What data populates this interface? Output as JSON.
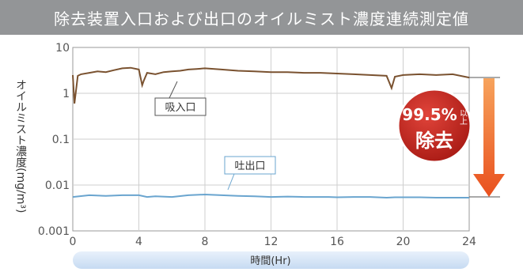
{
  "title": "除去装置入口および出口のオイルミスト濃度連続測定値",
  "chart_data": {
    "type": "line",
    "title": "除去装置入口および出口のオイルミスト濃度連続測定値",
    "xlabel": "時間(Hr)",
    "ylabel": "オイルミスト濃度(mg/m³)",
    "xlim": [
      0,
      24
    ],
    "ylim": [
      0.001,
      10
    ],
    "yscale": "log",
    "grid": true,
    "x_ticks": [
      "0",
      "4",
      "8",
      "12",
      "16",
      "20",
      "24"
    ],
    "y_ticks": [
      "10",
      "1",
      "0.1",
      "0.01",
      "0.001"
    ],
    "series": [
      {
        "name": "吸入口",
        "color": "#7a5230",
        "x": [
          0,
          0.1,
          0.2,
          0.3,
          0.5,
          1,
          1.5,
          2,
          2.5,
          3,
          3.5,
          4,
          4.2,
          4.3,
          4.5,
          5,
          5.5,
          6,
          6.5,
          7,
          7.5,
          8,
          9,
          10,
          11,
          12,
          13,
          14,
          15,
          16,
          17,
          18,
          19,
          19.3,
          19.5,
          20,
          21,
          22,
          23,
          24
        ],
        "y": [
          2.5,
          0.6,
          1.2,
          2.4,
          2.6,
          2.8,
          3.0,
          2.9,
          3.2,
          3.5,
          3.6,
          3.3,
          1.5,
          1.9,
          2.8,
          2.6,
          2.9,
          3.0,
          3.1,
          3.3,
          3.4,
          3.5,
          3.3,
          3.1,
          3.0,
          2.9,
          2.9,
          2.8,
          2.8,
          2.7,
          2.6,
          2.5,
          2.4,
          1.3,
          2.3,
          2.5,
          2.6,
          2.5,
          2.6,
          2.2
        ]
      },
      {
        "name": "吐出口",
        "color": "#6aa5cf",
        "x": [
          0,
          1,
          2,
          3,
          4,
          4.5,
          5,
          6,
          7,
          8,
          9,
          10,
          11,
          12,
          13,
          14,
          15,
          15.5,
          16,
          17,
          18,
          19,
          19.5,
          20,
          21,
          22,
          23,
          24
        ],
        "y": [
          0.0055,
          0.006,
          0.0058,
          0.006,
          0.006,
          0.0055,
          0.0057,
          0.0055,
          0.006,
          0.0062,
          0.006,
          0.0058,
          0.0057,
          0.0055,
          0.0056,
          0.0055,
          0.0055,
          0.0055,
          0.0054,
          0.0055,
          0.0055,
          0.0053,
          0.0054,
          0.0054,
          0.0054,
          0.0053,
          0.0053,
          0.0053
        ]
      }
    ],
    "annotations": {
      "inlet_label": "吸入口",
      "outlet_label": "吐出口",
      "reduction_value": "99.5%",
      "reduction_suffix": "以上",
      "reduction_label": "除去"
    }
  }
}
